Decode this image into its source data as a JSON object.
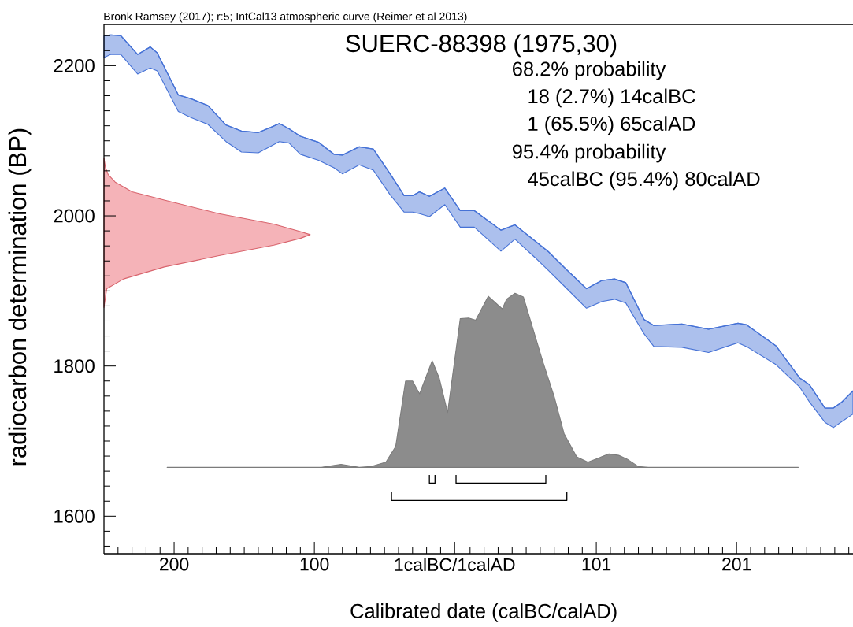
{
  "chart_data": {
    "type": "area",
    "title": "SUERC-88398 (1975,30)",
    "xlabel": "Calibrated date (calBC/calAD)",
    "ylabel": "radiocarbon determination (BP)",
    "annotations": [
      "Bronk Ramsey (2017); r:5; IntCal13 atmospheric curve (Reimer et al 2013)",
      "68.2% probability",
      "18 (2.7%) 14calBC",
      "1 (65.5%) 65calAD",
      "95.4% probability",
      "45calBC (95.4%) 80calAD"
    ],
    "xlim": [
      -250,
      284
    ],
    "ylim": [
      1550,
      2255
    ],
    "xticks": [
      {
        "value": -240,
        "label": null
      },
      {
        "value": -230,
        "label": null
      },
      {
        "value": -220,
        "label": null
      },
      {
        "value": -210,
        "label": null
      },
      {
        "value": -200,
        "label": "200"
      },
      {
        "value": -190,
        "label": null
      },
      {
        "value": -180,
        "label": null
      },
      {
        "value": -170,
        "label": null
      },
      {
        "value": -160,
        "label": null
      },
      {
        "value": -150,
        "label": null
      },
      {
        "value": -140,
        "label": null
      },
      {
        "value": -130,
        "label": null
      },
      {
        "value": -120,
        "label": null
      },
      {
        "value": -110,
        "label": null
      },
      {
        "value": -100,
        "label": "100"
      },
      {
        "value": -90,
        "label": null
      },
      {
        "value": -80,
        "label": null
      },
      {
        "value": -70,
        "label": null
      },
      {
        "value": -60,
        "label": null
      },
      {
        "value": -50,
        "label": null
      },
      {
        "value": -40,
        "label": null
      },
      {
        "value": -30,
        "label": null
      },
      {
        "value": -20,
        "label": null
      },
      {
        "value": -10,
        "label": null
      },
      {
        "value": 0,
        "label": "1calBC/1calAD"
      },
      {
        "value": 11,
        "label": null
      },
      {
        "value": 21,
        "label": null
      },
      {
        "value": 31,
        "label": null
      },
      {
        "value": 41,
        "label": null
      },
      {
        "value": 51,
        "label": null
      },
      {
        "value": 61,
        "label": null
      },
      {
        "value": 71,
        "label": null
      },
      {
        "value": 81,
        "label": null
      },
      {
        "value": 91,
        "label": null
      },
      101,
      {
        "value": 111,
        "label": null
      },
      {
        "value": 121,
        "label": null
      },
      {
        "value": 131,
        "label": null
      },
      {
        "value": 141,
        "label": null
      },
      {
        "value": 151,
        "label": null
      },
      {
        "value": 161,
        "label": null
      },
      {
        "value": 171,
        "label": null
      },
      {
        "value": 181,
        "label": null
      },
      {
        "value": 191,
        "label": null
      },
      201,
      {
        "value": 211,
        "label": null
      },
      {
        "value": 221,
        "label": null
      },
      {
        "value": 231,
        "label": null
      },
      {
        "value": 241,
        "label": null
      },
      {
        "value": 251,
        "label": null
      },
      {
        "value": 261,
        "label": null
      },
      {
        "value": 271,
        "label": null
      },
      {
        "value": 281,
        "label": null
      }
    ],
    "yticks": [
      {
        "value": 1560,
        "label": null
      },
      {
        "value": 1580,
        "label": null
      },
      1600,
      {
        "value": 1620,
        "label": null
      },
      {
        "value": 1640,
        "label": null
      },
      {
        "value": 1660,
        "label": null
      },
      {
        "value": 1680,
        "label": null
      },
      {
        "value": 1700,
        "label": null
      },
      {
        "value": 1720,
        "label": null
      },
      {
        "value": 1740,
        "label": null
      },
      {
        "value": 1760,
        "label": null
      },
      {
        "value": 1780,
        "label": null
      },
      1800,
      {
        "value": 1820,
        "label": null
      },
      {
        "value": 1840,
        "label": null
      },
      {
        "value": 1860,
        "label": null
      },
      {
        "value": 1880,
        "label": null
      },
      {
        "value": 1900,
        "label": null
      },
      {
        "value": 1920,
        "label": null
      },
      {
        "value": 1940,
        "label": null
      },
      {
        "value": 1960,
        "label": null
      },
      {
        "value": 1980,
        "label": null
      },
      2000,
      {
        "value": 2020,
        "label": null
      },
      {
        "value": 2040,
        "label": null
      },
      {
        "value": 2060,
        "label": null
      },
      {
        "value": 2080,
        "label": null
      },
      {
        "value": 2100,
        "label": null
      },
      {
        "value": 2120,
        "label": null
      },
      {
        "value": 2140,
        "label": null
      },
      {
        "value": 2160,
        "label": null
      },
      {
        "value": 2180,
        "label": null
      },
      2200,
      {
        "value": 2220,
        "label": null
      },
      {
        "value": 2240,
        "label": null
      }
    ],
    "series": [
      {
        "type": "line",
        "color": "#4672d6",
        "x": [
          -250,
          -245,
          -238,
          -226,
          -217,
          -212,
          -197,
          -188,
          -176,
          -163,
          -152,
          -140,
          -131,
          -125,
          -118,
          -110,
          -97,
          -86,
          -80,
          -68,
          -58,
          -46,
          -36,
          -30,
          -25,
          -18,
          -7,
          4,
          14,
          33,
          43,
          57,
          67,
          80,
          94,
          105,
          114,
          122,
          135,
          142,
          162,
          181,
          202,
          208,
          229,
          246,
          253,
          264,
          270,
          276,
          284
        ],
        "values": [
          2240,
          2241,
          2240,
          2215,
          2225,
          2217,
          2161,
          2156,
          2147,
          2121,
          2113,
          2111,
          2118,
          2123,
          2116,
          2106,
          2098,
          2082,
          2081,
          2092,
          2089,
          2056,
          2027,
          2027,
          2032,
          2026,
          2037,
          2007,
          2007,
          1981,
          1988,
          1967,
          1952,
          1928,
          1903,
          1914,
          1916,
          1911,
          1862,
          1854,
          1856,
          1849,
          1857,
          1855,
          1827,
          1784,
          1775,
          1744,
          1744,
          1752,
          1767
        ],
        "upper": [
          2240,
          2241,
          2240,
          2215,
          2225,
          2217,
          2161,
          2156,
          2147,
          2121,
          2113,
          2111,
          2118,
          2123,
          2116,
          2106,
          2098,
          2082,
          2081,
          2092,
          2089,
          2056,
          2027,
          2027,
          2032,
          2026,
          2037,
          2007,
          2007,
          1981,
          1988,
          1967,
          1952,
          1928,
          1903,
          1914,
          1916,
          1911,
          1862,
          1854,
          1856,
          1849,
          1857,
          1855,
          1827,
          1784,
          1775,
          1744,
          1744,
          1752,
          1767
        ],
        "lower": [
          2211,
          2215,
          2215,
          2189,
          2197,
          2193,
          2139,
          2131,
          2122,
          2099,
          2085,
          2084,
          2093,
          2099,
          2097,
          2082,
          2074,
          2064,
          2056,
          2068,
          2061,
          2028,
          2005,
          2005,
          2003,
          1999,
          2015,
          1985,
          1985,
          1953,
          1969,
          1945,
          1927,
          1903,
          1877,
          1886,
          1889,
          1884,
          1843,
          1826,
          1825,
          1818,
          1831,
          1826,
          1802,
          1772,
          1752,
          1725,
          1718,
          1726,
          1736
        ]
      },
      {
        "color": "#f5b3b8",
        "x": [
          -250,
          -249,
          -247,
          -242,
          -230,
          -207,
          -168,
          -129,
          -110,
          -103,
          -110,
          -129,
          -168,
          -207,
          -236,
          -248,
          -249,
          -250
        ],
        "values": [
          2077,
          2065,
          2055,
          2045,
          2032,
          2021,
          2003,
          1989,
          1979,
          1975,
          1970,
          1961,
          1947,
          1932,
          1916,
          1903,
          1891,
          1878
        ]
      },
      {
        "color": "#8c8c8c",
        "x": [
          -205,
          -95,
          -81,
          -68,
          -60,
          -49,
          -42,
          -35,
          -30,
          -25,
          -16,
          -11,
          -5,
          4,
          10,
          15,
          24,
          34,
          37,
          43,
          49,
          63,
          71,
          78,
          87,
          95,
          102,
          110,
          117,
          123,
          131,
          138,
          245
        ],
        "values": [
          1665,
          1665,
          1669,
          1665,
          1666,
          1672,
          1693,
          1780,
          1780,
          1763,
          1807,
          1784,
          1738,
          1863,
          1864,
          1861,
          1893,
          1876,
          1889,
          1897,
          1892,
          1805,
          1759,
          1710,
          1679,
          1672,
          1677,
          1683,
          1681,
          1676,
          1666,
          1665,
          1665
        ]
      },
      {
        "type": "line",
        "color": "#000000",
        "x": [
          -18,
          -18,
          -14,
          -14
        ],
        "values": [
          1655,
          1644,
          1644,
          1655
        ]
      },
      {
        "type": "line",
        "color": "#000000",
        "x": [
          1,
          1,
          65,
          65
        ],
        "values": [
          1655,
          1644,
          1644,
          1655
        ]
      },
      {
        "type": "line",
        "color": "#000000",
        "x": [
          -45,
          -45,
          80,
          80
        ],
        "values": [
          1632,
          1621,
          1621,
          1632
        ]
      }
    ]
  }
}
